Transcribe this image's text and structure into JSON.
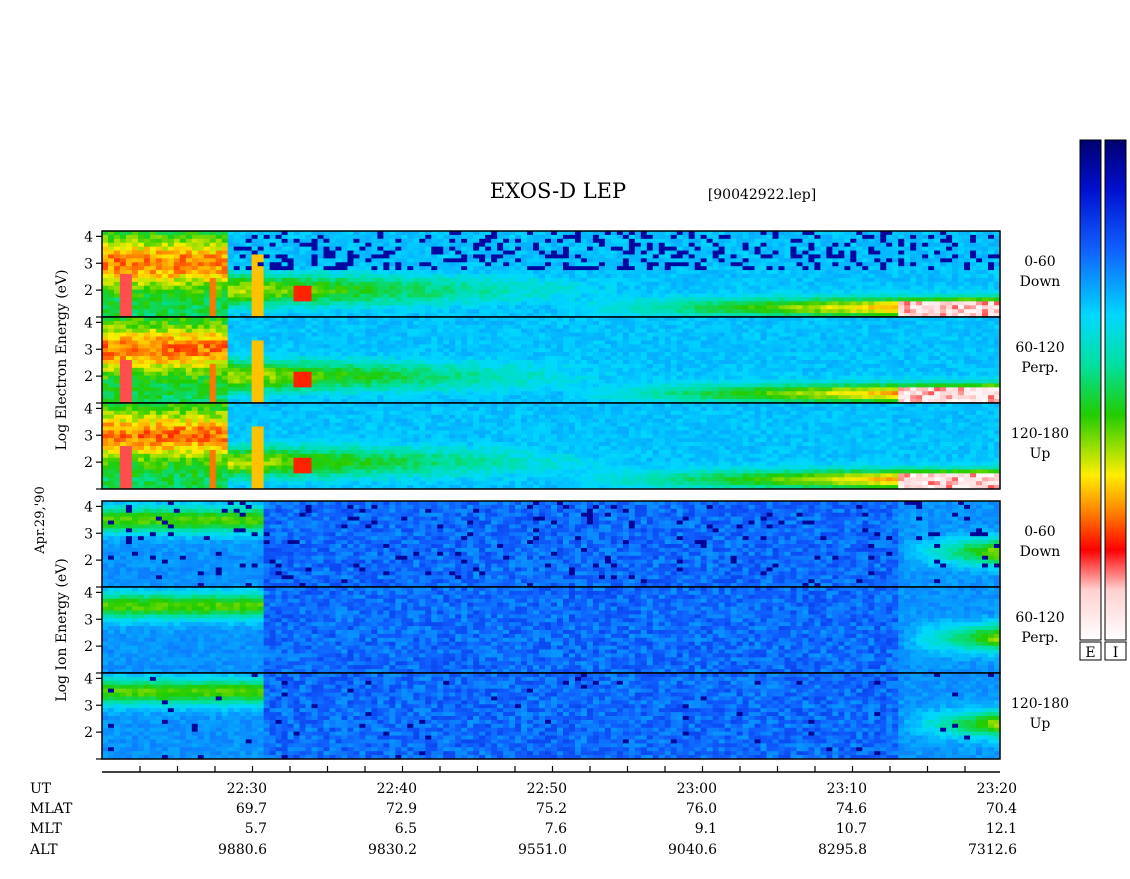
{
  "chart_data": {
    "type": "heatmap",
    "title": "EXOS-D LEP",
    "file_label": "[90042922.lep]",
    "date_label": "Apr.29,'90",
    "electron_ylabel": [
      "Log",
      "Electron",
      "Energy",
      "(eV)"
    ],
    "ion_ylabel": [
      "Log",
      "Ion",
      "Energy",
      "(eV)"
    ],
    "y_ticks": [
      2,
      3,
      4
    ],
    "y_range": [
      1,
      4.2
    ],
    "electron_panels": [
      {
        "pitch": "0-60",
        "dir": "Down"
      },
      {
        "pitch": "60-120",
        "dir": "Perp."
      },
      {
        "pitch": "120-180",
        "dir": "Up"
      }
    ],
    "ion_panels": [
      {
        "pitch": "0-60",
        "dir": "Down"
      },
      {
        "pitch": "60-120",
        "dir": "Perp."
      },
      {
        "pitch": "120-180",
        "dir": "Up"
      }
    ],
    "x_range_minutes": [
      -1290,
      -1280
    ],
    "x_labels": [
      {
        "ut": "22:30",
        "mlat": "69.7",
        "mlt": "5.7",
        "alt": "9880.6"
      },
      {
        "ut": "22:40",
        "mlat": "72.9",
        "mlt": "6.5",
        "alt": "9830.2"
      },
      {
        "ut": "22:50",
        "mlat": "75.2",
        "mlt": "7.6",
        "alt": "9551.0"
      },
      {
        "ut": "23:00",
        "mlat": "76.0",
        "mlt": "9.1",
        "alt": "9040.6"
      },
      {
        "ut": "23:10",
        "mlat": "74.6",
        "mlt": "10.7",
        "alt": "8295.8"
      },
      {
        "ut": "23:20",
        "mlat": "70.4",
        "mlt": "12.1",
        "alt": "7312.6"
      }
    ],
    "row_labels": [
      "UT",
      "MLAT",
      "MLT",
      "ALT"
    ],
    "colorbar_labels": [
      "E",
      "I"
    ]
  }
}
